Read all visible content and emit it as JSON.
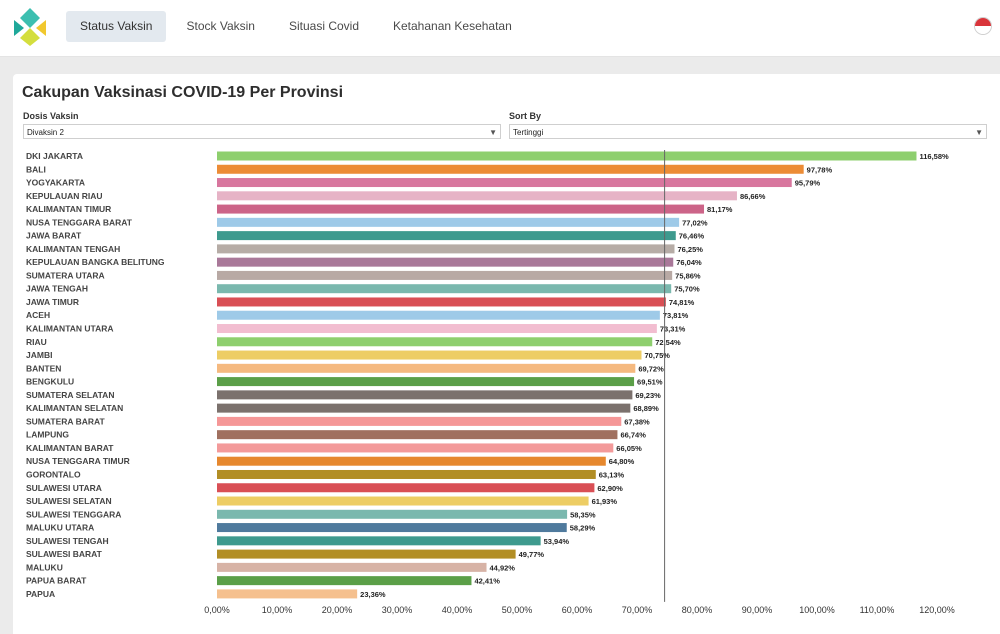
{
  "nav": {
    "items": [
      {
        "label": "Status Vaksin",
        "active": true
      },
      {
        "label": "Stock Vaksin",
        "active": false
      },
      {
        "label": "Situasi Covid",
        "active": false
      },
      {
        "label": "Ketahanan Kesehatan",
        "active": false
      }
    ]
  },
  "card": {
    "title": "Cakupan Vaksinasi COVID-19 Per Provinsi",
    "filters": {
      "dose_label": "Dosis Vaksin",
      "dose_value": "Divaksin 2",
      "sort_label": "Sort By",
      "sort_value": "Tertinggi"
    }
  },
  "chart_data": {
    "type": "bar",
    "orientation": "horizontal",
    "title": "Cakupan Vaksinasi COVID-19 Per Provinsi",
    "xlim": [
      0,
      120
    ],
    "x_ticks": [
      "0,00%",
      "10,00%",
      "20,00%",
      "30,00%",
      "40,00%",
      "50,00%",
      "60,00%",
      "70,00%",
      "80,00%",
      "90,00%",
      "100,00%",
      "110,00%",
      "120,00%"
    ],
    "reference_line": 74.6,
    "categories": [
      "DKI JAKARTA",
      "BALI",
      "YOGYAKARTA",
      "KEPULAUAN RIAU",
      "KALIMANTAN TIMUR",
      "NUSA TENGGARA BARAT",
      "JAWA BARAT",
      "KALIMANTAN TENGAH",
      "KEPULAUAN BANGKA BELITUNG",
      "SUMATERA UTARA",
      "JAWA TENGAH",
      "JAWA TIMUR",
      "ACEH",
      "KALIMANTAN UTARA",
      "RIAU",
      "JAMBI",
      "BANTEN",
      "BENGKULU",
      "SUMATERA SELATAN",
      "KALIMANTAN SELATAN",
      "SUMATERA BARAT",
      "LAMPUNG",
      "KALIMANTAN BARAT",
      "NUSA TENGGARA TIMUR",
      "GORONTALO",
      "SULAWESI UTARA",
      "SULAWESI SELATAN",
      "SULAWESI TENGGARA",
      "MALUKU UTARA",
      "SULAWESI TENGAH",
      "SULAWESI BARAT",
      "MALUKU",
      "PAPUA BARAT",
      "PAPUA"
    ],
    "values": [
      116.58,
      97.78,
      95.79,
      86.66,
      81.17,
      77.02,
      76.46,
      76.25,
      76.04,
      75.86,
      75.7,
      74.81,
      73.81,
      73.31,
      72.54,
      70.75,
      69.72,
      69.51,
      69.23,
      68.89,
      67.38,
      66.74,
      66.05,
      64.8,
      63.13,
      62.9,
      61.93,
      58.35,
      58.29,
      53.94,
      49.77,
      44.92,
      42.41,
      23.36
    ],
    "labels": [
      "116,58%",
      "97,78%",
      "95,79%",
      "86,66%",
      "81,17%",
      "77,02%",
      "76,46%",
      "76,25%",
      "76,04%",
      "75,86%",
      "75,70%",
      "74,81%",
      "73,81%",
      "73,31%",
      "72,54%",
      "70,75%",
      "69,72%",
      "69,51%",
      "69,23%",
      "68,89%",
      "67,38%",
      "66,74%",
      "66,05%",
      "64,80%",
      "63,13%",
      "62,90%",
      "61,93%",
      "58,35%",
      "58,29%",
      "53,94%",
      "49,77%",
      "44,92%",
      "42,41%",
      "23,36%"
    ],
    "colors": [
      "#8ecf6e",
      "#ec8c36",
      "#d8769e",
      "#e6b3c6",
      "#cc6488",
      "#9ecae8",
      "#3e9a8e",
      "#b6aca6",
      "#a97899",
      "#b8a9a4",
      "#7ab8ae",
      "#d94f55",
      "#9ecae8",
      "#f2bdd0",
      "#8ecf6e",
      "#edcd64",
      "#f5b97f",
      "#5b9f48",
      "#7b716d",
      "#7b716d",
      "#f59797",
      "#a0705f",
      "#f39a9a",
      "#e6882e",
      "#b28e25",
      "#d94f55",
      "#edcd64",
      "#7ab8ae",
      "#4f7a9d",
      "#3e9a8e",
      "#b28e25",
      "#d7b3a6",
      "#5b9f48",
      "#f5c08e"
    ]
  }
}
